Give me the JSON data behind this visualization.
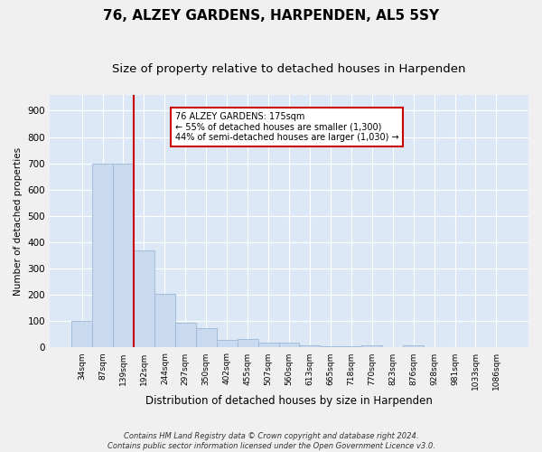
{
  "title": "76, ALZEY GARDENS, HARPENDEN, AL5 5SY",
  "subtitle": "Size of property relative to detached houses in Harpenden",
  "xlabel": "Distribution of detached houses by size in Harpenden",
  "ylabel": "Number of detached properties",
  "categories": [
    "34sqm",
    "87sqm",
    "139sqm",
    "192sqm",
    "244sqm",
    "297sqm",
    "350sqm",
    "402sqm",
    "455sqm",
    "507sqm",
    "560sqm",
    "613sqm",
    "665sqm",
    "718sqm",
    "770sqm",
    "823sqm",
    "876sqm",
    "928sqm",
    "981sqm",
    "1033sqm",
    "1086sqm"
  ],
  "values": [
    100,
    700,
    700,
    370,
    205,
    95,
    72,
    28,
    32,
    18,
    18,
    10,
    5,
    5,
    10,
    0,
    8,
    0,
    0,
    0,
    0
  ],
  "bar_color": "#c9daf0",
  "bar_edge_color": "#9db8d2",
  "vline_x_index": 2.5,
  "vline_color": "#cc0000",
  "annotation_text": "76 ALZEY GARDENS: 175sqm\n← 55% of detached houses are smaller (1,300)\n44% of semi-detached houses are larger (1,030) →",
  "annotation_box_color": "#ffffff",
  "annotation_box_edge": "#cc0000",
  "footer": "Contains HM Land Registry data © Crown copyright and database right 2024.\nContains public sector information licensed under the Open Government Licence v3.0.",
  "ylim": [
    0,
    960
  ],
  "yticks": [
    0,
    100,
    200,
    300,
    400,
    500,
    600,
    700,
    800,
    900
  ],
  "plot_bg_color": "#dce8f5",
  "fig_bg_color": "#f0f0f0",
  "title_fontsize": 11,
  "subtitle_fontsize": 9.5,
  "grid_color": "#ffffff"
}
